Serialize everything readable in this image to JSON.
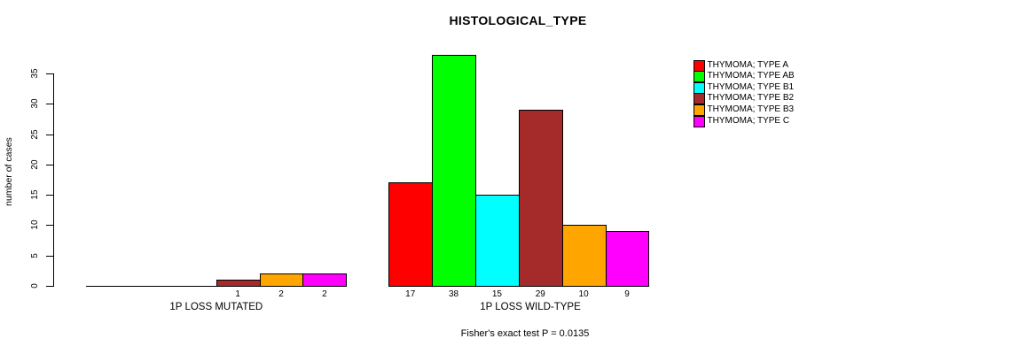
{
  "chart_data": {
    "type": "bar",
    "title": "HISTOLOGICAL_TYPE",
    "ylabel": "number of cases",
    "xlabel": "",
    "yticks": [
      0,
      5,
      10,
      15,
      20,
      25,
      30,
      35
    ],
    "ylim": [
      0,
      38
    ],
    "grid": false,
    "legend_position": "right",
    "categories": [
      "1P LOSS MUTATED",
      "1P LOSS WILD-TYPE"
    ],
    "series": [
      {
        "name": "THYMOMA; TYPE A",
        "color": "#FF0000",
        "values": [
          0,
          17
        ]
      },
      {
        "name": "THYMOMA; TYPE AB",
        "color": "#00FF00",
        "values": [
          0,
          38
        ]
      },
      {
        "name": "THYMOMA; TYPE B1",
        "color": "#00FFFF",
        "values": [
          0,
          15
        ]
      },
      {
        "name": "THYMOMA; TYPE B2",
        "color": "#A52A2A",
        "values": [
          1,
          29
        ]
      },
      {
        "name": "THYMOMA; TYPE B3",
        "color": "#FFA500",
        "values": [
          2,
          10
        ]
      },
      {
        "name": "THYMOMA; TYPE C",
        "color": "#FF00FF",
        "values": [
          2,
          9
        ]
      }
    ],
    "bar_value_labels": {
      "1P LOSS MUTATED": [
        "",
        "",
        "",
        "1",
        "2",
        "2"
      ],
      "1P LOSS WILD-TYPE": [
        "17",
        "38",
        "15",
        "29",
        "10",
        "9"
      ]
    },
    "annotation": "Fisher's exact test P = 0.0135"
  }
}
